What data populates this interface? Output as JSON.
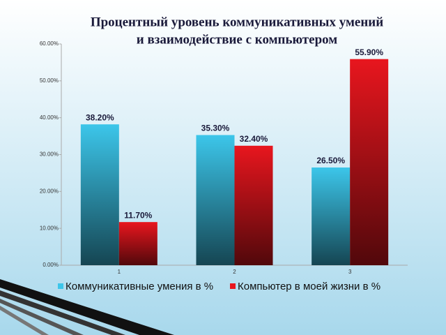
{
  "chart_data": {
    "type": "bar",
    "title": [
      "Процентный уровень коммуникативных умений",
      "и взаимодействие с компьютером"
    ],
    "categories": [
      "1",
      "2",
      "3"
    ],
    "series": [
      {
        "name": "Коммуникативные умения в %",
        "color": "#3cc6ea",
        "values": [
          38.2,
          35.3,
          26.5
        ],
        "value_labels": [
          "38.20%",
          "35.30%",
          "26.50%"
        ]
      },
      {
        "name": "Компьютер в моей жизни  в %",
        "color": "#e8161e",
        "values": [
          11.7,
          32.4,
          55.9
        ],
        "value_labels": [
          "11.70%",
          "32.40%",
          "55.90%"
        ]
      }
    ],
    "ylim": [
      0,
      60
    ],
    "yticks": [
      {
        "value": 0,
        "label": "0.00%"
      },
      {
        "value": 10,
        "label": "10.00%"
      },
      {
        "value": 20,
        "label": "20.00%"
      },
      {
        "value": 30,
        "label": "30.00%"
      },
      {
        "value": 40,
        "label": "40.00%"
      },
      {
        "value": 50,
        "label": "50.00%"
      },
      {
        "value": 60,
        "label": "60.00%"
      }
    ],
    "legend": "bottom"
  }
}
